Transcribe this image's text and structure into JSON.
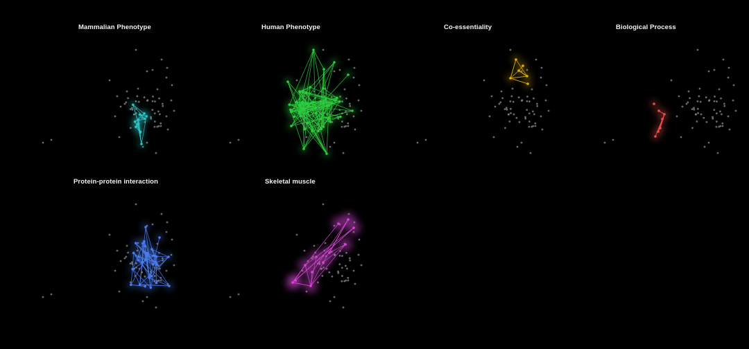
{
  "figure": {
    "background": "#000000",
    "node_color": "#8c8c8c",
    "panels": [
      {
        "title": "Mammalian Phenotype",
        "color": "#2ec4c4",
        "cluster": "narrow"
      },
      {
        "title": "Human Phenotype",
        "color": "#2ecc40",
        "cluster": "dense"
      },
      {
        "title": "Co-essentiality",
        "color": "#e0b000",
        "cluster": "triangle"
      },
      {
        "title": "Biological Process",
        "color": "#e8504a",
        "cluster": "arc"
      },
      {
        "title": "Protein-protein interaction",
        "color": "#4a7cf0",
        "cluster": "web"
      },
      {
        "title": "Skeletal muscle",
        "color": "#d646d6",
        "cluster": "plume"
      }
    ]
  }
}
